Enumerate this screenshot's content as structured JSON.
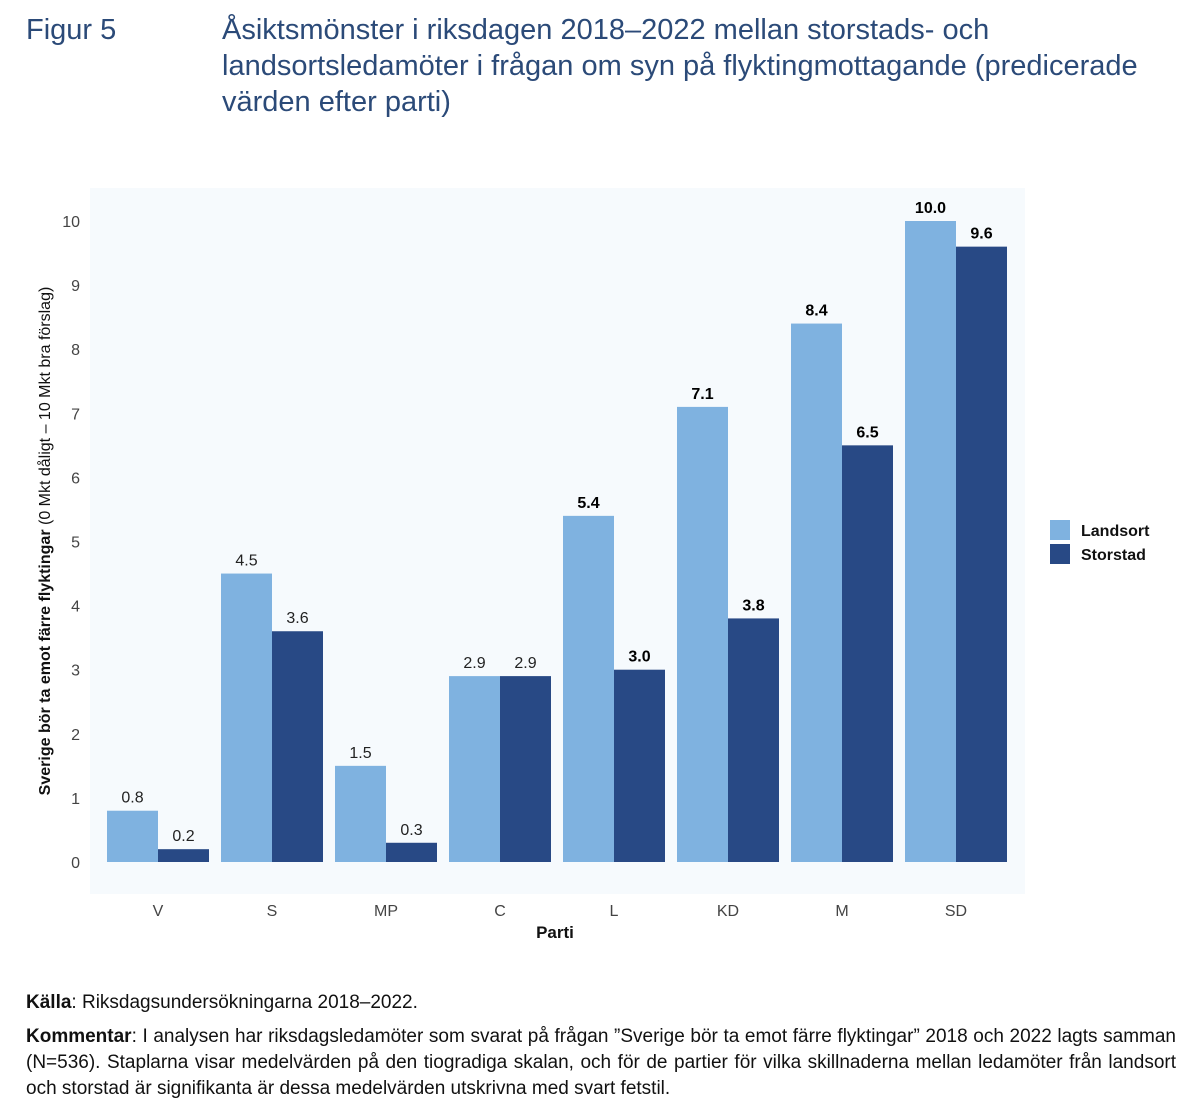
{
  "figure": {
    "label": "Figur 5",
    "title": "Åsiktsmönster i riksdagen 2018–2022 mellan storstads- och landsortsledamöter i frågan om syn på flyktingmottagande (predicerade värden efter parti)"
  },
  "footer": {
    "source_label": "Källa",
    "source_text": ": Riksdagsundersökningarna 2018–2022.",
    "comment_label": "Kommentar",
    "comment_text": ": I analysen har riksdagsledamöter som svarat på frågan ”Sverige bör ta emot färre flyktingar” 2018 och 2022 lagts samman (N=536). Staplarna visar medelvärden på den tiogradiga skalan, och för de partier för vilka skillnaderna mellan ledamöter från landsort och storstad är signifikanta är dessa medelvärden utskrivna med svart fetstil."
  },
  "chart_data": {
    "type": "bar",
    "categories": [
      "V",
      "S",
      "MP",
      "C",
      "L",
      "KD",
      "M",
      "SD"
    ],
    "series": [
      {
        "name": "Landsort",
        "color": "#7fb2e0",
        "values": [
          0.8,
          4.5,
          1.5,
          2.9,
          5.4,
          7.1,
          8.4,
          10.0
        ]
      },
      {
        "name": "Storstad",
        "color": "#284985",
        "values": [
          0.2,
          3.6,
          0.3,
          2.9,
          3.0,
          3.8,
          6.5,
          9.6
        ]
      }
    ],
    "value_labels": {
      "Landsort": [
        "0.8",
        "4.5",
        "1.5",
        "2.9",
        "5.4",
        "7.1",
        "8.4",
        "10.0"
      ],
      "Storstad": [
        "0.2",
        "3.6",
        "0.3",
        "2.9",
        "3.0",
        "3.8",
        "6.5",
        "9.6"
      ]
    },
    "bold_labels": [
      false,
      false,
      false,
      false,
      true,
      true,
      true,
      true
    ],
    "xlabel": "Parti",
    "ylabel_bold": "Sverige bör ta emot färre flyktingar",
    "ylabel_rest": " (0 Mkt dåligt – 10 Mkt bra förslag)",
    "ylim": [
      0,
      10
    ],
    "yticks": [
      0,
      1,
      2,
      3,
      4,
      5,
      6,
      7,
      8,
      9,
      10
    ],
    "grid": false,
    "legend_position": "right",
    "panel_color": "#f6fafd"
  }
}
